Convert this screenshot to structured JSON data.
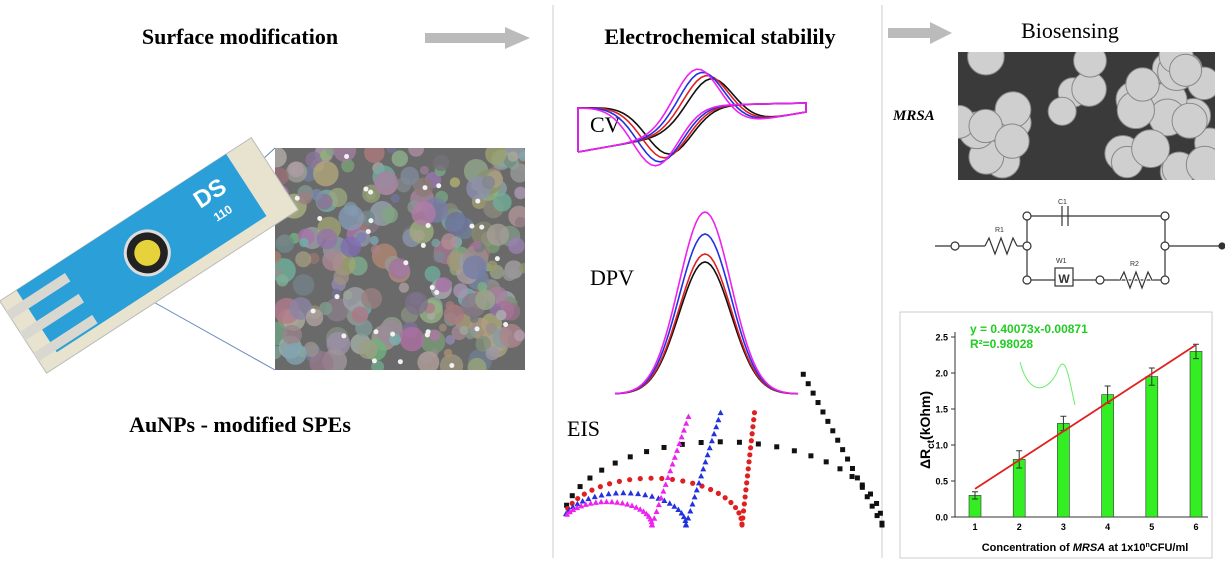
{
  "panels": {
    "surface": {
      "title": "Surface modification",
      "device_label": "DS",
      "device_code": "110",
      "caption": "AuNPs - modified SPEs"
    },
    "electrochem": {
      "title": "Electrochemical stabilily",
      "labels": [
        "CV",
        "DPV",
        "EIS"
      ]
    },
    "biosensing": {
      "title": "Biosensing",
      "sample": "MRSA",
      "circuit": {
        "labels": [
          "R1",
          "C1",
          "W1",
          "R2"
        ],
        "element": "W"
      }
    }
  },
  "chart_data": {
    "type": "bar",
    "categories": [
      "1",
      "2",
      "3",
      "4",
      "5",
      "6"
    ],
    "values": [
      0.3,
      0.8,
      1.3,
      1.7,
      1.95,
      2.3
    ],
    "errors": [
      0.05,
      0.12,
      0.1,
      0.12,
      0.12,
      0.1
    ],
    "color": "#33ee22",
    "ylim": [
      0,
      2.5
    ],
    "yticks": [
      {
        "value": 0,
        "label": "0.0"
      },
      {
        "value": 0.5,
        "label": "0.5"
      },
      {
        "value": 1,
        "label": "1.0"
      },
      {
        "value": 1.5,
        "label": "1.5"
      },
      {
        "value": 2,
        "label": "2.0"
      },
      {
        "value": 2.5,
        "label": "2.5"
      }
    ],
    "y_label": [
      "ΔR",
      "ct",
      "(kOhm)"
    ],
    "x_label": [
      "Concentration of ",
      "MRSA",
      " at 1x10",
      "n",
      "CFU/ml"
    ],
    "annotation": [
      "y = 0.40073x-0.00871",
      "R²=0.98028"
    ],
    "trend": {
      "x": [
        1,
        6
      ],
      "values": [
        0.39,
        2.39
      ],
      "color": "#e02020"
    }
  }
}
